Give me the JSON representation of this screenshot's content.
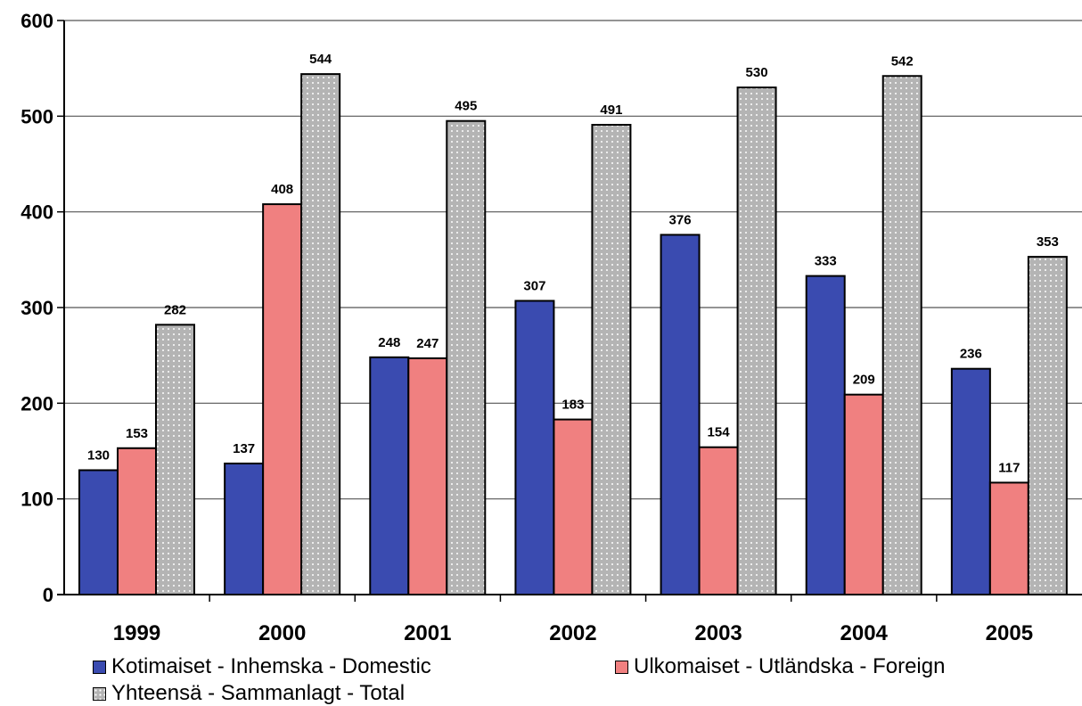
{
  "chart_data": {
    "type": "bar",
    "categories": [
      "1999",
      "2000",
      "2001",
      "2002",
      "2003",
      "2004",
      "2005"
    ],
    "series": [
      {
        "name": "Kotimaiset - Inhemska - Domestic",
        "values": [
          130,
          137,
          248,
          307,
          376,
          333,
          236
        ],
        "color": "#3a4bb0",
        "pattern": "solid"
      },
      {
        "name": "Ulkomaiset - Utländska - Foreign",
        "values": [
          153,
          408,
          247,
          183,
          154,
          209,
          117
        ],
        "color": "#f08080",
        "pattern": "solid"
      },
      {
        "name": "Yhteensä - Sammanlagt - Total",
        "values": [
          282,
          544,
          495,
          491,
          530,
          542,
          353
        ],
        "color": "#b4b4b4",
        "pattern": "dotted"
      }
    ],
    "y_ticks": [
      "0",
      "100",
      "200",
      "300",
      "400",
      "500",
      "600"
    ],
    "ylim": [
      0,
      600
    ],
    "grid": true,
    "legend_position": "bottom",
    "data_labels": true
  }
}
